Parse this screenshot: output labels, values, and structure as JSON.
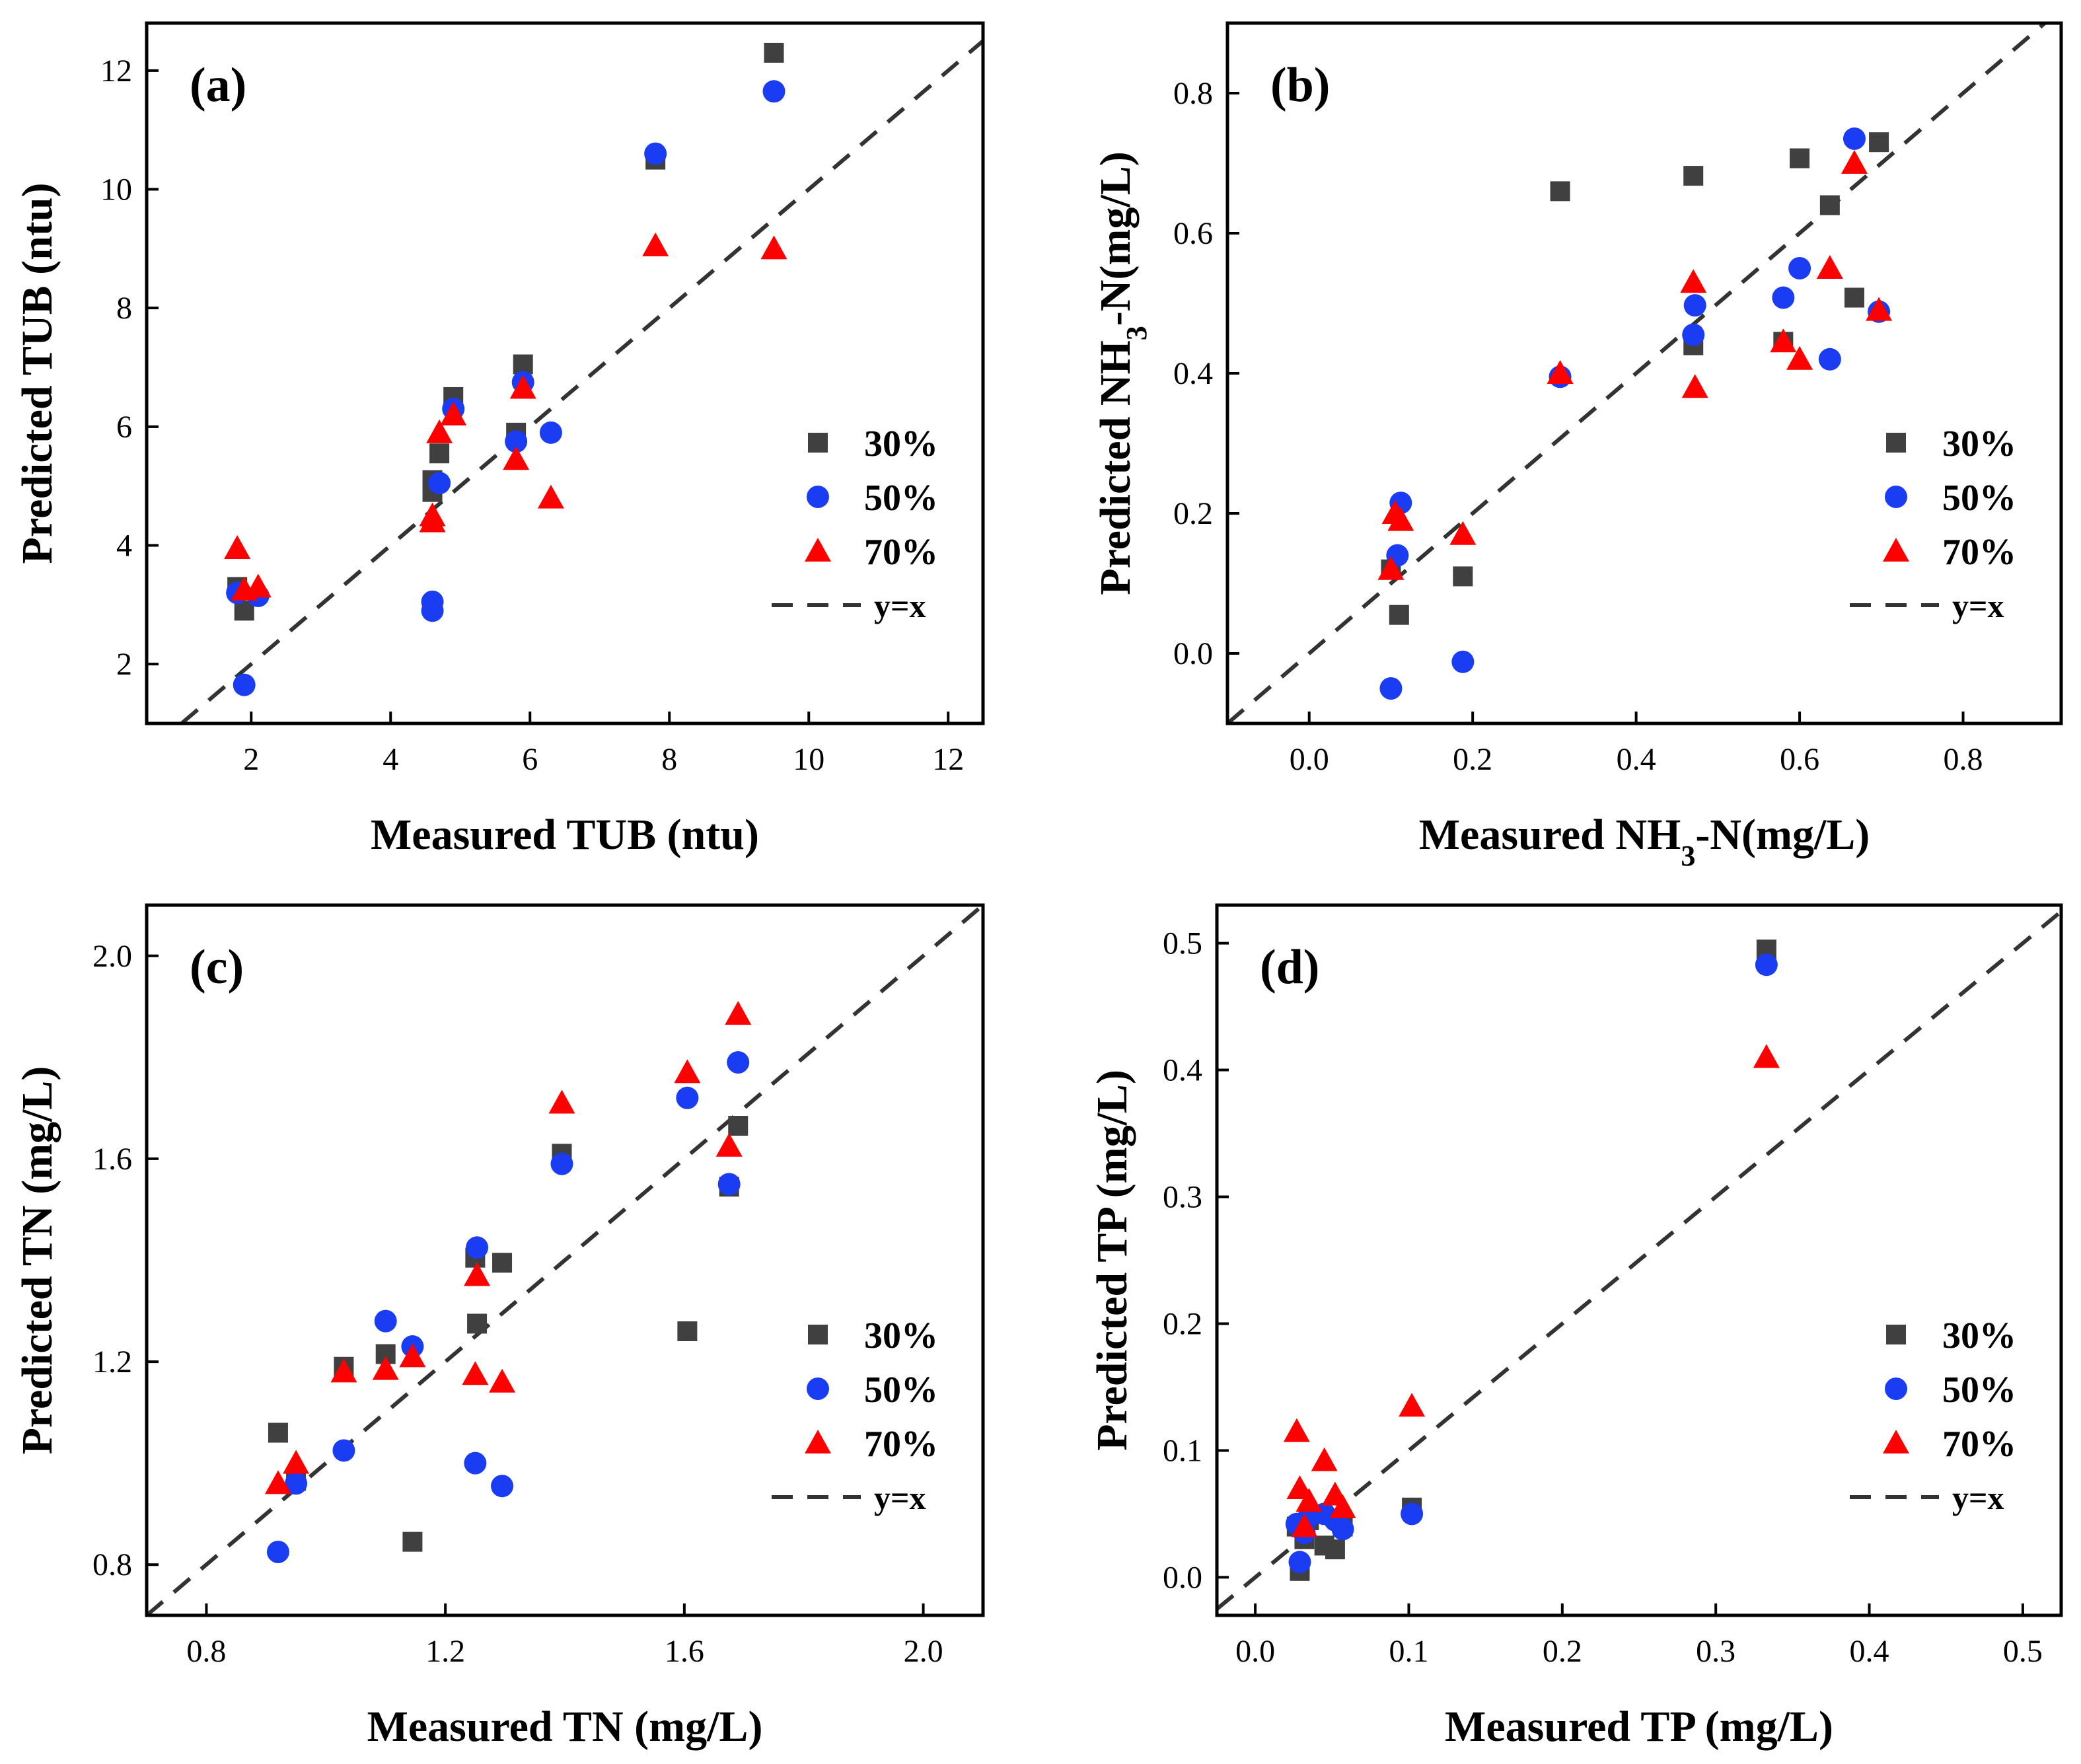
{
  "colors": {
    "series_30": "#404040",
    "series_50": "#1a3cf2",
    "series_70": "#ff0000",
    "diagonal": "#333333"
  },
  "chart_data": [
    {
      "id": "a",
      "type": "scatter",
      "panel_label": "(a)",
      "xlabel": "Measured TUB (ntu)",
      "ylabel": "Predicted TUB (ntu)",
      "xlim": [
        0.5,
        12.5
      ],
      "ylim": [
        1.0,
        12.8
      ],
      "xticks": [
        "2",
        "4",
        "6",
        "8",
        "10",
        "12"
      ],
      "yticks": [
        "2",
        "4",
        "6",
        "8",
        "10",
        "12"
      ],
      "legend_position": "bottom-right",
      "reference_line": "y=x",
      "series": [
        {
          "name": "30%",
          "marker": "square",
          "color": "#404040",
          "x": [
            1.8,
            1.9,
            4.6,
            4.6,
            4.7,
            4.9,
            5.8,
            5.9,
            7.8,
            9.5
          ],
          "y": [
            3.3,
            2.9,
            5.1,
            4.9,
            5.55,
            6.5,
            5.9,
            7.05,
            10.5,
            12.3
          ]
        },
        {
          "name": "50%",
          "marker": "circle",
          "color": "#1a3cf2",
          "x": [
            1.8,
            1.9,
            2.1,
            4.6,
            4.6,
            4.7,
            4.9,
            5.8,
            5.9,
            6.3,
            7.8,
            9.5
          ],
          "y": [
            3.2,
            1.65,
            3.15,
            3.05,
            2.9,
            5.05,
            6.3,
            5.75,
            6.75,
            5.9,
            10.6,
            11.65
          ]
        },
        {
          "name": "70%",
          "marker": "triangle",
          "color": "#ff0000",
          "x": [
            1.8,
            1.9,
            2.1,
            4.6,
            4.6,
            4.7,
            4.9,
            5.8,
            5.9,
            6.3,
            7.8,
            9.5
          ],
          "y": [
            3.95,
            3.25,
            3.3,
            4.5,
            4.4,
            5.9,
            6.2,
            5.45,
            6.65,
            4.8,
            9.05,
            9.0
          ]
        }
      ]
    },
    {
      "id": "b",
      "type": "scatter",
      "panel_label": "(b)",
      "xlabel_main": "Measured NH",
      "xlabel_sub": "3",
      "xlabel_tail": "-N(mg/L)",
      "ylabel_main": "Predicted NH",
      "ylabel_sub": "3",
      "ylabel_tail": "-N(mg/L)",
      "xlim": [
        -0.1,
        0.92
      ],
      "ylim": [
        -0.1,
        0.9
      ],
      "xticks": [
        "0.0",
        "0.2",
        "0.4",
        "0.6",
        "0.8"
      ],
      "yticks": [
        "0.0",
        "0.2",
        "0.4",
        "0.6",
        "0.8"
      ],
      "legend_position": "bottom-right",
      "reference_line": "y=x",
      "series": [
        {
          "name": "30%",
          "marker": "square",
          "color": "#404040",
          "x": [
            0.1,
            0.11,
            0.188,
            0.307,
            0.47,
            0.47,
            0.58,
            0.6,
            0.637,
            0.667,
            0.697
          ],
          "y": [
            0.12,
            0.055,
            0.11,
            0.66,
            0.44,
            0.682,
            0.445,
            0.707,
            0.64,
            0.508,
            0.73
          ]
        },
        {
          "name": "50%",
          "marker": "circle",
          "color": "#1a3cf2",
          "x": [
            0.1,
            0.108,
            0.112,
            0.188,
            0.307,
            0.47,
            0.472,
            0.58,
            0.6,
            0.637,
            0.667,
            0.697
          ],
          "y": [
            -0.05,
            0.14,
            0.215,
            -0.012,
            0.395,
            0.455,
            0.497,
            0.508,
            0.55,
            0.42,
            0.735,
            0.488
          ]
        },
        {
          "name": "70%",
          "marker": "triangle",
          "color": "#ff0000",
          "x": [
            0.1,
            0.105,
            0.112,
            0.188,
            0.307,
            0.47,
            0.472,
            0.58,
            0.6,
            0.637,
            0.667,
            0.697
          ],
          "y": [
            0.12,
            0.2,
            0.19,
            0.17,
            0.4,
            0.53,
            0.38,
            0.445,
            0.42,
            0.55,
            0.7,
            0.49
          ]
        }
      ]
    },
    {
      "id": "c",
      "type": "scatter",
      "panel_label": "(c)",
      "xlabel": "Measured TN (mg/L)",
      "ylabel": "Predicted TN (mg/L)",
      "xlim": [
        0.7,
        2.1
      ],
      "ylim": [
        0.7,
        2.1
      ],
      "xticks": [
        "0.8",
        "1.2",
        "1.6",
        "2.0"
      ],
      "yticks": [
        "0.8",
        "1.2",
        "1.6",
        "2.0"
      ],
      "legend_position": "bottom-right",
      "reference_line": "y=x",
      "series": [
        {
          "name": "30%",
          "marker": "square",
          "color": "#404040",
          "x": [
            0.92,
            0.95,
            1.03,
            1.1,
            1.145,
            1.25,
            1.253,
            1.295,
            1.395,
            1.605,
            1.675,
            1.69
          ],
          "y": [
            1.06,
            0.965,
            1.19,
            1.215,
            0.845,
            1.405,
            1.275,
            1.395,
            1.61,
            1.26,
            1.545,
            1.665
          ]
        },
        {
          "name": "50%",
          "marker": "circle",
          "color": "#1a3cf2",
          "x": [
            0.92,
            0.95,
            1.03,
            1.1,
            1.145,
            1.25,
            1.253,
            1.295,
            1.395,
            1.605,
            1.675,
            1.69
          ],
          "y": [
            0.825,
            0.96,
            1.025,
            1.28,
            1.23,
            1.0,
            1.425,
            0.955,
            1.59,
            1.72,
            1.55,
            1.79
          ]
        },
        {
          "name": "70%",
          "marker": "triangle",
          "color": "#ff0000",
          "x": [
            0.92,
            0.95,
            1.03,
            1.1,
            1.145,
            1.25,
            1.253,
            1.295,
            1.395,
            1.605,
            1.675,
            1.69
          ],
          "y": [
            0.96,
            1.0,
            1.18,
            1.185,
            1.21,
            1.175,
            1.37,
            1.16,
            1.71,
            1.77,
            1.625,
            1.885
          ]
        }
      ]
    },
    {
      "id": "d",
      "type": "scatter",
      "panel_label": "(d)",
      "xlabel": "Measured TP (mg/L)",
      "ylabel": "Predicted TP (mg/L)",
      "xlim": [
        -0.025,
        0.525
      ],
      "ylim": [
        -0.03,
        0.53
      ],
      "xticks": [
        "0.0",
        "0.1",
        "0.2",
        "0.3",
        "0.4",
        "0.5"
      ],
      "yticks": [
        "0.0",
        "0.1",
        "0.2",
        "0.3",
        "0.4",
        "0.5"
      ],
      "legend_position": "bottom-right",
      "reference_line": "y=x",
      "series": [
        {
          "name": "30%",
          "marker": "square",
          "color": "#404040",
          "x": [
            0.027,
            0.029,
            0.032,
            0.035,
            0.045,
            0.052,
            0.057,
            0.102,
            0.333
          ],
          "y": [
            0.04,
            0.005,
            0.03,
            0.045,
            0.025,
            0.022,
            0.04,
            0.055,
            0.495
          ]
        },
        {
          "name": "50%",
          "marker": "circle",
          "color": "#1a3cf2",
          "x": [
            0.027,
            0.029,
            0.032,
            0.035,
            0.045,
            0.052,
            0.057,
            0.102,
            0.333
          ],
          "y": [
            0.042,
            0.012,
            0.035,
            0.048,
            0.05,
            0.045,
            0.038,
            0.05,
            0.483
          ]
        },
        {
          "name": "70%",
          "marker": "triangle",
          "color": "#ff0000",
          "x": [
            0.027,
            0.029,
            0.032,
            0.035,
            0.045,
            0.052,
            0.057,
            0.102,
            0.333
          ],
          "y": [
            0.115,
            0.07,
            0.04,
            0.06,
            0.092,
            0.065,
            0.055,
            0.135,
            0.41
          ]
        }
      ]
    }
  ]
}
